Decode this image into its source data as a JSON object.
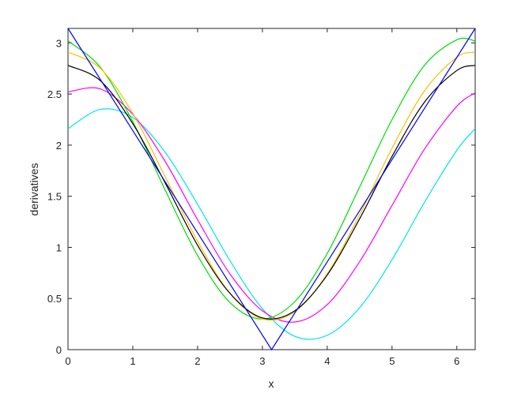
{
  "chart_data": {
    "type": "line",
    "xlabel": "x",
    "ylabel": "derivatives",
    "xlim": [
      0,
      6.2832
    ],
    "ylim": [
      0,
      3.1416
    ],
    "xticks": [
      0,
      1,
      2,
      3,
      4,
      5,
      6
    ],
    "yticks": [
      0,
      0.5,
      1,
      1.5,
      2,
      2.5,
      3
    ],
    "series": [
      {
        "color": "#00e5e5",
        "x": [
          0,
          0.5,
          1,
          1.5,
          2,
          2.5,
          3,
          3.5,
          4,
          4.5,
          5,
          5.5,
          6,
          6.28
        ],
        "values": [
          2.16,
          2.35,
          2.27,
          1.93,
          1.42,
          0.87,
          0.4,
          0.13,
          0.14,
          0.41,
          0.88,
          1.44,
          1.95,
          2.16
        ]
      },
      {
        "color": "#ff00ff",
        "x": [
          0,
          0.5,
          1,
          1.5,
          2,
          2.5,
          3,
          3.5,
          4,
          4.5,
          5,
          5.5,
          6,
          6.28
        ],
        "values": [
          2.52,
          2.55,
          2.3,
          1.84,
          1.27,
          0.74,
          0.38,
          0.27,
          0.44,
          0.86,
          1.41,
          1.96,
          2.38,
          2.51
        ]
      },
      {
        "color": "#00dd00",
        "x": [
          0,
          0.5,
          1,
          1.5,
          2,
          2.5,
          3,
          3.5,
          4,
          4.5,
          5,
          5.5,
          6,
          6.28
        ],
        "values": [
          3.02,
          2.76,
          2.23,
          1.56,
          0.92,
          0.46,
          0.3,
          0.47,
          0.94,
          1.59,
          2.25,
          2.78,
          3.03,
          3.02
        ]
      },
      {
        "color": "#ffbf00",
        "x": [
          0,
          0.5,
          1,
          1.5,
          2,
          2.5,
          3,
          3.5,
          4,
          4.5,
          5,
          5.5,
          6,
          6.28
        ],
        "values": [
          2.91,
          2.75,
          2.31,
          1.69,
          1.06,
          0.55,
          0.3,
          0.37,
          0.74,
          1.32,
          1.97,
          2.53,
          2.86,
          2.91
        ]
      },
      {
        "color": "#000000",
        "x": [
          0,
          0.5,
          1,
          1.5,
          2,
          2.5,
          3,
          3.5,
          4,
          4.5,
          5,
          5.5,
          6,
          6.28
        ],
        "values": [
          2.78,
          2.63,
          2.21,
          1.63,
          1.02,
          0.55,
          0.31,
          0.38,
          0.73,
          1.28,
          1.89,
          2.42,
          2.73,
          2.78
        ]
      },
      {
        "color": "#0000ff",
        "smooth": false,
        "x": [
          0,
          3.1416,
          6.2832
        ],
        "values": [
          3.1416,
          0,
          3.1416
        ]
      }
    ]
  }
}
